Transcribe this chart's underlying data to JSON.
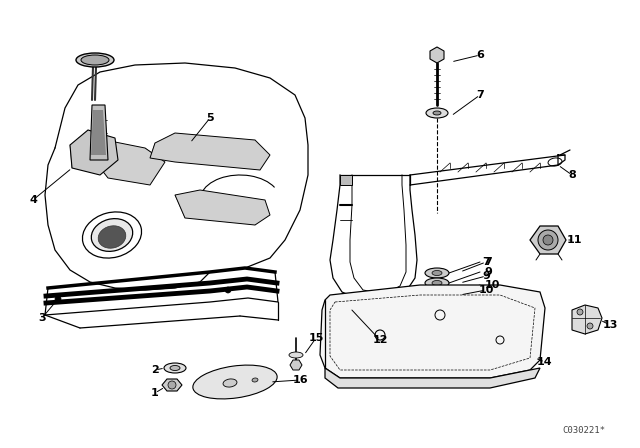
{
  "bg_color": "#ffffff",
  "line_color": "#000000",
  "figure_width": 6.4,
  "figure_height": 4.48,
  "dpi": 100,
  "watermark": "C030221*"
}
